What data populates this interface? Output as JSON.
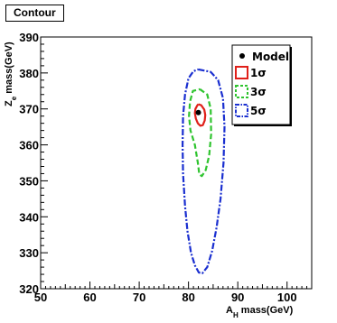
{
  "chart_data": {
    "type": "line",
    "title": "Contour",
    "xlabel_main": "A",
    "xlabel_sub": "H",
    "xlabel_rest": " mass(GeV)",
    "ylabel_main": "Z",
    "ylabel_sub": "e",
    "ylabel_rest": " mass(GeV)",
    "xlim": [
      50,
      105
    ],
    "ylim": [
      320,
      390
    ],
    "xticks": [
      "50",
      "60",
      "70",
      "80",
      "90",
      "100"
    ],
    "yticks": [
      "320",
      "330",
      "340",
      "350",
      "360",
      "370",
      "380",
      "390"
    ],
    "grid": false,
    "legend_position": "top-right",
    "model_point": {
      "name": "Model",
      "x": 82,
      "y": 369,
      "color": "#000000"
    },
    "series": [
      {
        "name": "1σ",
        "color": "#e0201a",
        "dash": "solid",
        "x": [
          82.0,
          82.6,
          83.2,
          83.4,
          83.3,
          82.9,
          82.4,
          81.9,
          81.5,
          81.3,
          81.4,
          81.8,
          82.0
        ],
        "y": [
          371.3,
          371.0,
          369.8,
          368.3,
          366.8,
          365.5,
          365.3,
          366.0,
          367.3,
          368.8,
          370.0,
          371.0,
          371.3
        ]
      },
      {
        "name": "3σ",
        "color": "#2fc42f",
        "dash": "dashed",
        "x": [
          82.3,
          83.8,
          84.5,
          84.6,
          84.2,
          83.5,
          82.7,
          82.2,
          81.9,
          81.3,
          80.4,
          80.1,
          80.3,
          80.9,
          82.3
        ],
        "y": [
          375.5,
          374.0,
          370.0,
          363.0,
          357.0,
          353.0,
          351.3,
          351.8,
          355.0,
          360.0,
          364.0,
          368.0,
          372.0,
          375.0,
          375.5
        ]
      },
      {
        "name": "5σ",
        "color": "#1a2fd0",
        "dash": "dashdot",
        "x": [
          82.0,
          84.5,
          86.0,
          87.0,
          87.3,
          87.1,
          86.5,
          85.7,
          84.8,
          83.8,
          82.8,
          82.1,
          81.3,
          80.5,
          79.8,
          79.3,
          78.9,
          78.8,
          78.9,
          79.3,
          80.0,
          81.0,
          82.0
        ],
        "y": [
          381.0,
          380.3,
          378.0,
          373.0,
          365.0,
          355.0,
          345.0,
          337.0,
          330.5,
          326.0,
          324.3,
          324.5,
          326.5,
          330.0,
          336.0,
          343.0,
          352.0,
          360.0,
          368.0,
          374.0,
          378.5,
          380.5,
          381.0
        ]
      }
    ]
  }
}
